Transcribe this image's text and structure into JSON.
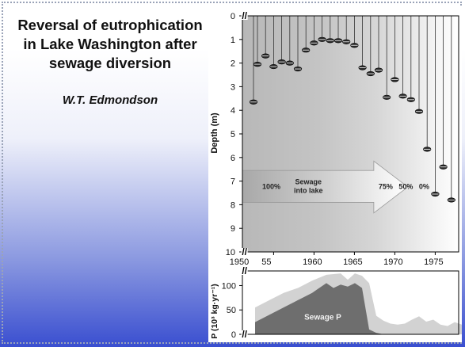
{
  "slide": {
    "title_lines": [
      "Reversal of eutrophication",
      "in Lake Washington after",
      "sewage diversion"
    ],
    "author": "W.T. Edmondson"
  },
  "chart_data": [
    {
      "type": "scatter",
      "ylabel": "Depth (m)",
      "y_inverted": true,
      "ylim": [
        0,
        10
      ],
      "xlim": [
        1950,
        1979.5
      ],
      "x_ticks": [
        "1950",
        "55",
        "1960",
        "1965",
        "1970",
        "1975"
      ],
      "y_ticks": [
        "0",
        "1",
        "2",
        "3",
        "4",
        "5",
        "6",
        "7",
        "8",
        "9",
        "10"
      ],
      "axis_break_labels": [
        "//",
        "//"
      ],
      "marker": "Secchi disk",
      "points": [
        {
          "x": 1950,
          "y": 3.65
        },
        {
          "x": 1953,
          "y": 2.05
        },
        {
          "x": 1954,
          "y": 1.7
        },
        {
          "x": 1955,
          "y": 2.15
        },
        {
          "x": 1956,
          "y": 1.95
        },
        {
          "x": 1957,
          "y": 2.0
        },
        {
          "x": 1958,
          "y": 2.25
        },
        {
          "x": 1959,
          "y": 1.45
        },
        {
          "x": 1960,
          "y": 1.15
        },
        {
          "x": 1961,
          "y": 1.0
        },
        {
          "x": 1962,
          "y": 1.05
        },
        {
          "x": 1963,
          "y": 1.05
        },
        {
          "x": 1964,
          "y": 1.1
        },
        {
          "x": 1965,
          "y": 1.25
        },
        {
          "x": 1966,
          "y": 2.2
        },
        {
          "x": 1967,
          "y": 2.45
        },
        {
          "x": 1968,
          "y": 2.3
        },
        {
          "x": 1969,
          "y": 3.45
        },
        {
          "x": 1970,
          "y": 2.7
        },
        {
          "x": 1971,
          "y": 3.4
        },
        {
          "x": 1972,
          "y": 3.55
        },
        {
          "x": 1973,
          "y": 4.05
        },
        {
          "x": 1974,
          "y": 5.65
        },
        {
          "x": 1975,
          "y": 7.55
        },
        {
          "x": 1976,
          "y": 6.4
        },
        {
          "x": 1977,
          "y": 7.8
        }
      ],
      "annotation": {
        "label_lines": [
          "Sewage",
          "into lake"
        ],
        "percentages": [
          {
            "label": "100%",
            "year": 1950.5
          },
          {
            "label": "75%",
            "year": 1967.3
          },
          {
            "label": "50%",
            "year": 1969.8
          },
          {
            "label": "0%",
            "year": 1972.3
          }
        ]
      },
      "colors": {
        "arrow_dark": "#b3b3b3",
        "arrow_light": "#ffffff",
        "marker": "#222222"
      }
    },
    {
      "type": "area",
      "ylabel": "P (10³ kg·yr⁻¹)",
      "ylim": [
        0,
        130
      ],
      "y_ticks": [
        "0",
        "50",
        "100"
      ],
      "xlim": [
        1950,
        1979.5
      ],
      "series": [
        {
          "name": "",
          "color": "#d2d2d2",
          "points": [
            [
              1950,
              55
            ],
            [
              1952,
              70
            ],
            [
              1954,
              85
            ],
            [
              1956,
              95
            ],
            [
              1958,
              110
            ],
            [
              1960,
              122
            ],
            [
              1962,
              125
            ],
            [
              1963,
              112
            ],
            [
              1964,
              125
            ],
            [
              1965,
              120
            ],
            [
              1966,
              105
            ],
            [
              1967,
              38
            ],
            [
              1968,
              28
            ],
            [
              1969,
              22
            ],
            [
              1970,
              20
            ],
            [
              1971,
              22
            ],
            [
              1972,
              30
            ],
            [
              1973,
              37
            ],
            [
              1974,
              26
            ],
            [
              1975,
              30
            ],
            [
              1976,
              20
            ],
            [
              1977,
              17
            ],
            [
              1978,
              25
            ],
            [
              1979,
              20
            ]
          ]
        },
        {
          "name": "Sewage P",
          "color": "#6e6e6e",
          "points": [
            [
              1950,
              25
            ],
            [
              1952,
              40
            ],
            [
              1954,
              55
            ],
            [
              1956,
              70
            ],
            [
              1958,
              85
            ],
            [
              1959,
              95
            ],
            [
              1960,
              105
            ],
            [
              1961,
              95
            ],
            [
              1962,
              102
            ],
            [
              1963,
              98
            ],
            [
              1964,
              105
            ],
            [
              1965,
              95
            ],
            [
              1966,
              10
            ],
            [
              1967,
              3
            ],
            [
              1968,
              0
            ]
          ]
        }
      ]
    }
  ]
}
